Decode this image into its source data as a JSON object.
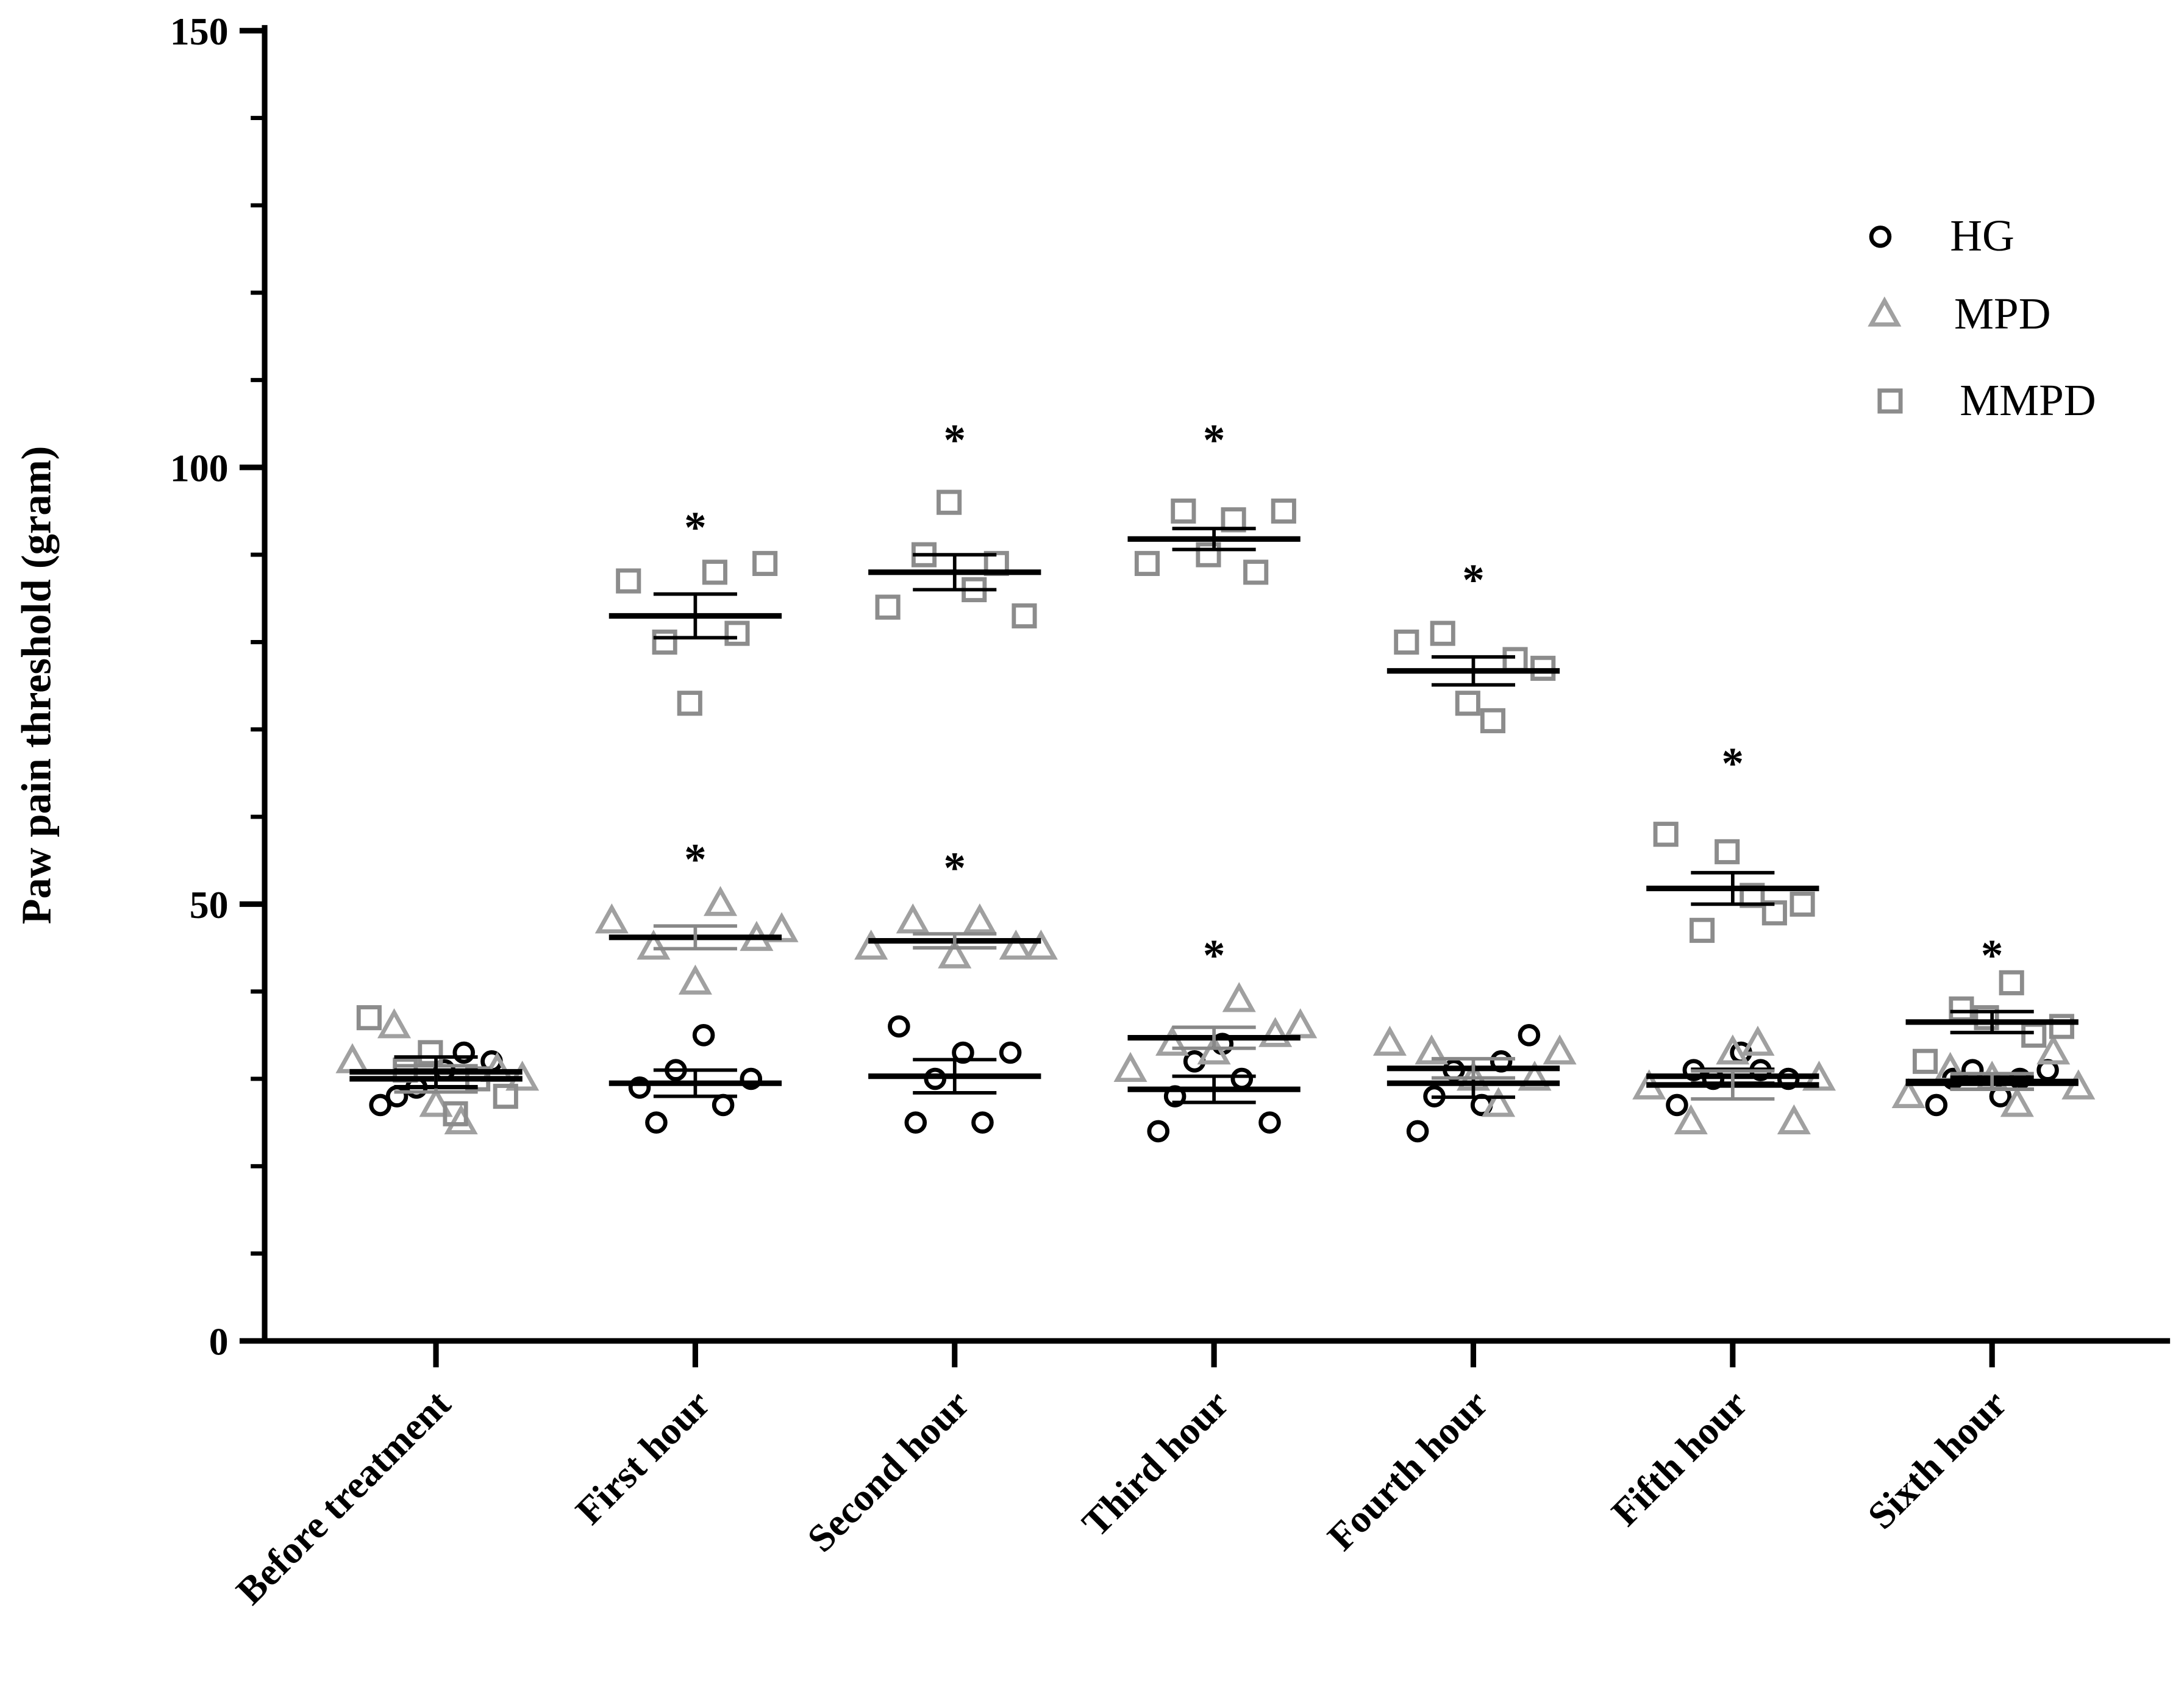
{
  "chart_data": {
    "type": "scatter",
    "y_label": "Paw pain threshold (gram)",
    "categories": [
      "Before treatment",
      "First hour",
      "Second hour",
      "Third hour",
      "Fourth hour",
      "Fifth hour",
      "Sixth hour"
    ],
    "ylim": [
      0,
      150
    ],
    "yticks": [
      0,
      50,
      100,
      150
    ],
    "yminorticks": [
      10,
      20,
      30,
      40,
      60,
      70,
      80,
      90,
      110,
      120,
      130,
      140
    ],
    "legend": "upper right",
    "series": [
      {
        "name": "HG",
        "color": "#000000",
        "marker": "circle",
        "values": [
          [
            27,
            28,
            29,
            31,
            33,
            32
          ],
          [
            29,
            25,
            31,
            35,
            27,
            30
          ],
          [
            36,
            25,
            30,
            33,
            25,
            33
          ],
          [
            24,
            28,
            32,
            34,
            30,
            25
          ],
          [
            24,
            28,
            31,
            27,
            32,
            35
          ],
          [
            27,
            31,
            30,
            33,
            31,
            30
          ],
          [
            27,
            30,
            31,
            28,
            30,
            31
          ]
        ],
        "means": [
          30,
          29.5,
          30.3,
          28.8,
          29.5,
          30.3,
          29.5
        ],
        "sems": [
          1,
          1.5,
          1.9,
          1.5,
          1.6,
          0.8,
          0.7
        ]
      },
      {
        "name": "MPD",
        "color": "#a0a0a0",
        "marker": "triangle",
        "values": [
          [
            32,
            36,
            27,
            25,
            31,
            30
          ],
          [
            48,
            45,
            41,
            50,
            46,
            47
          ],
          [
            45,
            48,
            44,
            48,
            45,
            45
          ],
          [
            31,
            34,
            33,
            39,
            35,
            36
          ],
          [
            34,
            33,
            30,
            27,
            30,
            33
          ],
          [
            29,
            25,
            33,
            34,
            25,
            30
          ],
          [
            28,
            31,
            30,
            27,
            33,
            29
          ]
        ],
        "means": [
          30,
          46.2,
          45.8,
          34.7,
          31.2,
          29.3,
          29.7
        ],
        "sems": [
          1.5,
          1.3,
          0.8,
          1.2,
          1.1,
          1.6,
          0.9
        ]
      },
      {
        "name": "MMPD",
        "color": "#8c8c8c",
        "marker": "square",
        "values": [
          [
            37,
            31,
            33,
            26,
            30,
            28
          ],
          [
            87,
            80,
            73,
            88,
            81,
            89
          ],
          [
            84,
            90,
            96,
            86,
            89,
            83
          ],
          [
            89,
            95,
            90,
            94,
            88,
            95
          ],
          [
            80,
            81,
            73,
            71,
            78,
            77
          ],
          [
            58,
            47,
            56,
            51,
            49,
            50
          ],
          [
            32,
            38,
            37,
            41,
            35,
            36
          ]
        ],
        "means": [
          30.8,
          83,
          88,
          91.8,
          76.7,
          51.8,
          36.5
        ],
        "sems": [
          1.7,
          2.5,
          2,
          1.2,
          1.6,
          1.8,
          1.2
        ]
      }
    ],
    "annotations": [
      {
        "category": "First hour",
        "y": 94,
        "text": "*"
      },
      {
        "category": "First hour",
        "y": 56,
        "text": "*"
      },
      {
        "category": "Second hour",
        "y": 104,
        "text": "*"
      },
      {
        "category": "Second hour",
        "y": 55,
        "text": "*"
      },
      {
        "category": "Third hour",
        "y": 104,
        "text": "*"
      },
      {
        "category": "Third hour",
        "y": 45,
        "text": "*"
      },
      {
        "category": "Fourth hour",
        "y": 88,
        "text": "*"
      },
      {
        "category": "Fifth hour",
        "y": 67,
        "text": "*"
      },
      {
        "category": "Sixth hour",
        "y": 45,
        "text": "*"
      }
    ]
  }
}
